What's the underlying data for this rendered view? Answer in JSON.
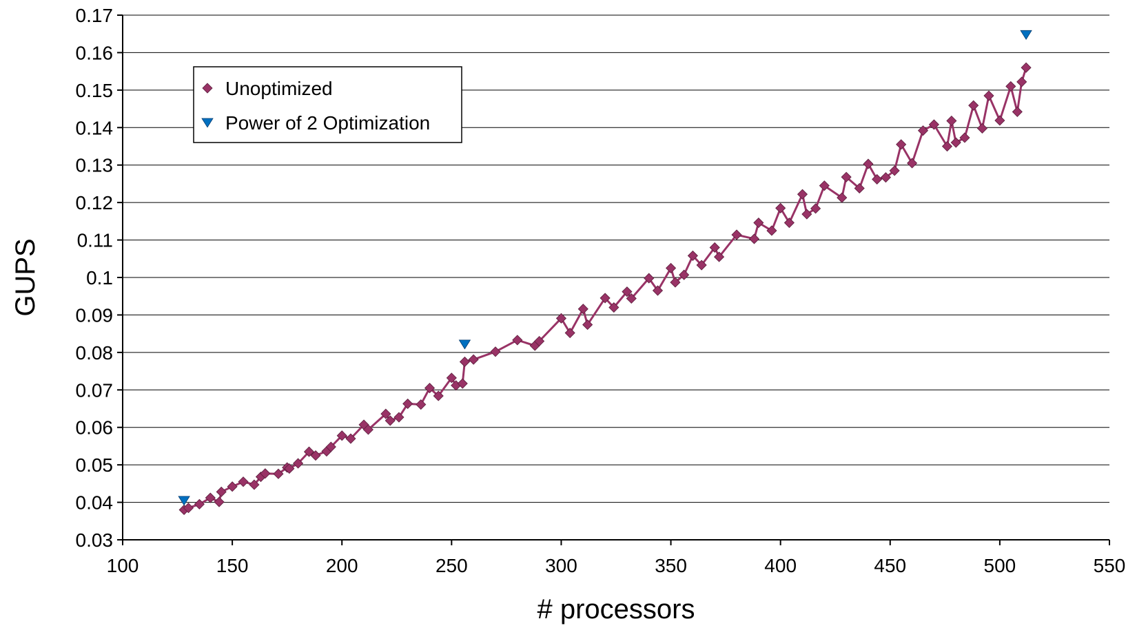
{
  "chart_data": {
    "type": "line",
    "title": "",
    "xlabel": "# processors",
    "ylabel": "GUPS",
    "xlim": [
      100,
      550
    ],
    "ylim": [
      0.03,
      0.17
    ],
    "x_ticks": [
      "100",
      "150",
      "200",
      "250",
      "300",
      "350",
      "400",
      "450",
      "500",
      "550"
    ],
    "y_ticks": [
      "0.03",
      "0.04",
      "0.05",
      "0.06",
      "0.07",
      "0.08",
      "0.09",
      "0.1",
      "0.11",
      "0.12",
      "0.13",
      "0.14",
      "0.15",
      "0.16",
      "0.17"
    ],
    "grid": "horizontal",
    "legend_position": "upper-left",
    "series": [
      {
        "name": "Unoptimized",
        "color": "#993366",
        "marker": "diamond",
        "line": true,
        "points_sampled": [
          [
            128,
            0.038
          ],
          [
            130,
            0.0385
          ],
          [
            135,
            0.0395
          ],
          [
            140,
            0.0412
          ],
          [
            144,
            0.0401
          ],
          [
            145,
            0.0428
          ],
          [
            150,
            0.0442
          ],
          [
            155,
            0.0455
          ],
          [
            160,
            0.0447
          ],
          [
            163,
            0.0468
          ],
          [
            165,
            0.0477
          ],
          [
            171,
            0.0476
          ],
          [
            175,
            0.0493
          ],
          [
            176,
            0.049
          ],
          [
            180,
            0.0504
          ],
          [
            185,
            0.0535
          ],
          [
            188,
            0.0525
          ],
          [
            193,
            0.0536
          ],
          [
            195,
            0.0548
          ],
          [
            200,
            0.0578
          ],
          [
            204,
            0.057
          ],
          [
            210,
            0.0607
          ],
          [
            212,
            0.0594
          ],
          [
            220,
            0.0636
          ],
          [
            222,
            0.0618
          ],
          [
            226,
            0.0627
          ],
          [
            230,
            0.0663
          ],
          [
            236,
            0.0661
          ],
          [
            240,
            0.0705
          ],
          [
            244,
            0.0684
          ],
          [
            250,
            0.0732
          ],
          [
            252,
            0.0712
          ],
          [
            255,
            0.0717
          ],
          [
            256,
            0.0775
          ],
          [
            260,
            0.0781
          ],
          [
            270,
            0.0802
          ],
          [
            280,
            0.0833
          ],
          [
            288,
            0.0818
          ],
          [
            290,
            0.083
          ],
          [
            300,
            0.0891
          ],
          [
            304,
            0.0852
          ],
          [
            310,
            0.0916
          ],
          [
            312,
            0.0874
          ],
          [
            320,
            0.0945
          ],
          [
            324,
            0.092
          ],
          [
            330,
            0.0962
          ],
          [
            332,
            0.0944
          ],
          [
            340,
            0.0998
          ],
          [
            344,
            0.0965
          ],
          [
            350,
            0.1025
          ],
          [
            352,
            0.0987
          ],
          [
            356,
            0.1007
          ],
          [
            360,
            0.1058
          ],
          [
            364,
            0.1033
          ],
          [
            370,
            0.108
          ],
          [
            372,
            0.1055
          ],
          [
            380,
            0.1114
          ],
          [
            388,
            0.1103
          ],
          [
            390,
            0.1146
          ],
          [
            396,
            0.1125
          ],
          [
            400,
            0.1185
          ],
          [
            404,
            0.1146
          ],
          [
            410,
            0.1222
          ],
          [
            412,
            0.1169
          ],
          [
            416,
            0.1184
          ],
          [
            420,
            0.1245
          ],
          [
            428,
            0.1213
          ],
          [
            430,
            0.1268
          ],
          [
            436,
            0.1238
          ],
          [
            440,
            0.1303
          ],
          [
            444,
            0.1262
          ],
          [
            448,
            0.1267
          ],
          [
            452,
            0.1285
          ],
          [
            455,
            0.1355
          ],
          [
            460,
            0.1305
          ],
          [
            465,
            0.1392
          ],
          [
            470,
            0.1408
          ],
          [
            476,
            0.135
          ],
          [
            478,
            0.1418
          ],
          [
            480,
            0.136
          ],
          [
            484,
            0.1373
          ],
          [
            488,
            0.1459
          ],
          [
            492,
            0.1398
          ],
          [
            495,
            0.1485
          ],
          [
            500,
            0.1419
          ],
          [
            505,
            0.151
          ],
          [
            508,
            0.1442
          ],
          [
            510,
            0.1522
          ],
          [
            512,
            0.156
          ]
        ]
      },
      {
        "name": "Power of 2 Optimization",
        "color": "#0070C0",
        "marker": "triangle-down",
        "line": false,
        "x": [
          128,
          256,
          512
        ],
        "y": [
          0.0405,
          0.0822,
          0.1648
        ]
      }
    ]
  }
}
